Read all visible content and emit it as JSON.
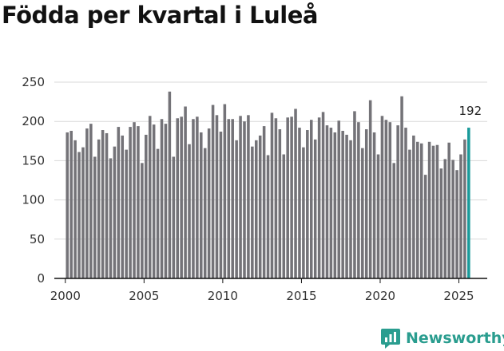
{
  "page": {
    "title": "Födda per kvartal i Luleå"
  },
  "brand": {
    "name": "Newsworthy",
    "color": "#2a9d8f"
  },
  "colors": {
    "bar": "#747378",
    "highlight": "#199a9a",
    "grid": "#d9d9d9",
    "axis": "#111111"
  },
  "chart_data": {
    "type": "bar",
    "title": "Födda per kvartal i Luleå",
    "xlabel": "",
    "ylabel": "",
    "ylim": [
      0,
      250
    ],
    "yticks": [
      0,
      50,
      100,
      150,
      200,
      250
    ],
    "xticks": [
      2000,
      2005,
      2010,
      2015,
      2020,
      2025
    ],
    "xlim": [
      1999.3,
      2026.8
    ],
    "highlight_last": true,
    "last_label": "192",
    "series": [
      {
        "name": "Födda",
        "x": [
          2000.125,
          2000.375,
          2000.625,
          2000.875,
          2001.125,
          2001.375,
          2001.625,
          2001.875,
          2002.125,
          2002.375,
          2002.625,
          2002.875,
          2003.125,
          2003.375,
          2003.625,
          2003.875,
          2004.125,
          2004.375,
          2004.625,
          2004.875,
          2005.125,
          2005.375,
          2005.625,
          2005.875,
          2006.125,
          2006.375,
          2006.625,
          2006.875,
          2007.125,
          2007.375,
          2007.625,
          2007.875,
          2008.125,
          2008.375,
          2008.625,
          2008.875,
          2009.125,
          2009.375,
          2009.625,
          2009.875,
          2010.125,
          2010.375,
          2010.625,
          2010.875,
          2011.125,
          2011.375,
          2011.625,
          2011.875,
          2012.125,
          2012.375,
          2012.625,
          2012.875,
          2013.125,
          2013.375,
          2013.625,
          2013.875,
          2014.125,
          2014.375,
          2014.625,
          2014.875,
          2015.125,
          2015.375,
          2015.625,
          2015.875,
          2016.125,
          2016.375,
          2016.625,
          2016.875,
          2017.125,
          2017.375,
          2017.625,
          2017.875,
          2018.125,
          2018.375,
          2018.625,
          2018.875,
          2019.125,
          2019.375,
          2019.625,
          2019.875,
          2020.125,
          2020.375,
          2020.625,
          2020.875,
          2021.125,
          2021.375,
          2021.625,
          2021.875,
          2022.125,
          2022.375,
          2022.625,
          2022.875,
          2023.125,
          2023.375,
          2023.625,
          2023.875,
          2024.125,
          2024.375,
          2024.625,
          2024.875,
          2025.125,
          2025.375,
          2025.625
        ],
        "values": [
          186,
          188,
          176,
          161,
          167,
          191,
          197,
          155,
          177,
          189,
          185,
          153,
          168,
          193,
          182,
          164,
          193,
          199,
          194,
          147,
          183,
          207,
          196,
          165,
          203,
          197,
          238,
          155,
          204,
          206,
          219,
          171,
          203,
          206,
          186,
          166,
          191,
          221,
          208,
          187,
          222,
          203,
          203,
          176,
          207,
          200,
          208,
          168,
          176,
          182,
          194,
          157,
          211,
          204,
          190,
          158,
          205,
          206,
          216,
          192,
          167,
          189,
          202,
          177,
          205,
          212,
          195,
          192,
          186,
          201,
          188,
          183,
          176,
          213,
          199,
          166,
          190,
          227,
          186,
          158,
          207,
          202,
          199,
          147,
          195,
          232,
          192,
          164,
          182,
          174,
          172,
          132,
          174,
          169,
          170,
          140,
          152,
          173,
          151,
          138,
          158,
          177,
          192
        ]
      }
    ]
  }
}
